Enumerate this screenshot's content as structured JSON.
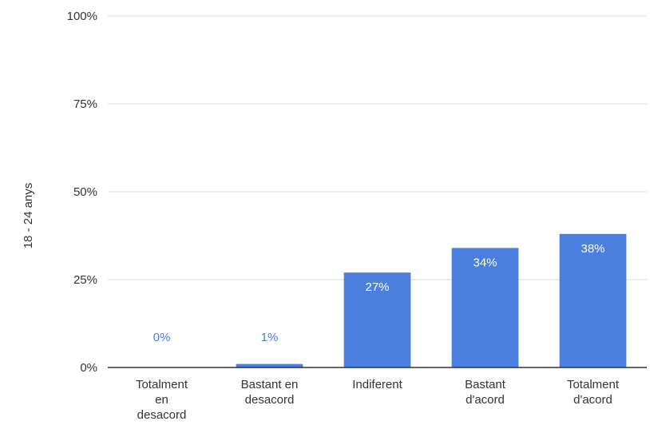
{
  "chart_data": {
    "type": "bar",
    "categories": [
      [
        "Totalment",
        "en",
        "desacord"
      ],
      [
        "Bastant en",
        "desacord"
      ],
      [
        "Indiferent"
      ],
      [
        "Bastant",
        "d'acord"
      ],
      [
        "Totalment",
        "d'acord"
      ]
    ],
    "values": [
      0,
      1,
      27,
      34,
      38
    ],
    "data_labels": [
      "0%",
      "1%",
      "27%",
      "34%",
      "38%"
    ],
    "ylabel": "18 - 24 anys",
    "ylim": [
      0,
      100
    ],
    "yticks": [
      {
        "value": 0,
        "label": "0%"
      },
      {
        "value": 25,
        "label": "25%"
      },
      {
        "value": 50,
        "label": "50%"
      },
      {
        "value": 75,
        "label": "75%"
      },
      {
        "value": 100,
        "label": "100%"
      }
    ],
    "grid": true,
    "colors": {
      "bar": "#4a7fe0",
      "label_inside": "#ffffff",
      "label_outside": "#4a7fe0",
      "grid": "#d9d9d9",
      "axis": "#333333"
    }
  }
}
